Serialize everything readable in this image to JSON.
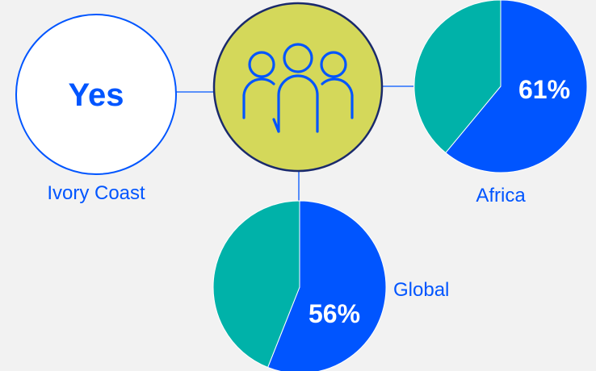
{
  "colors": {
    "blue": "#0055ff",
    "teal": "#00b2a9",
    "lime": "#d4d85a",
    "navy": "#1a2a6c",
    "background": "#f2f2f2",
    "white": "#ffffff"
  },
  "hub": {
    "icon": "people-group-icon"
  },
  "chart_data": [
    {
      "type": "text",
      "name": "Ivory Coast",
      "value_label": "Yes",
      "label": "Ivory Coast"
    },
    {
      "type": "pie",
      "label": "Africa",
      "value_label": "61%",
      "slices": [
        {
          "value": 61,
          "color": "#0055ff"
        },
        {
          "value": 39,
          "color": "#00b2a9"
        }
      ]
    },
    {
      "type": "pie",
      "label": "Global",
      "value_label": "56%",
      "slices": [
        {
          "value": 56,
          "color": "#0055ff"
        },
        {
          "value": 44,
          "color": "#00b2a9"
        }
      ]
    }
  ]
}
